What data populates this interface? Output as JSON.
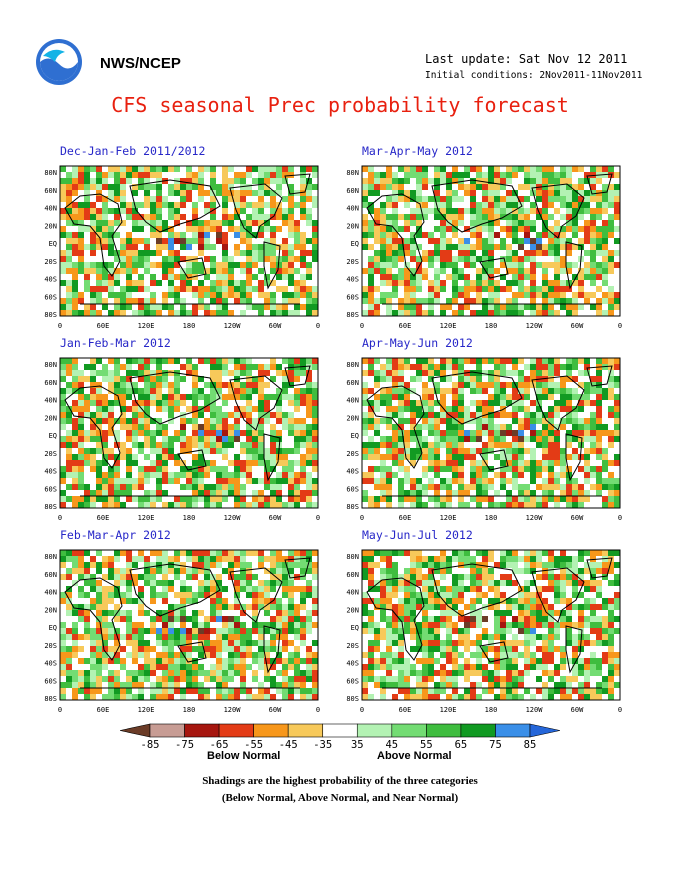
{
  "header": {
    "agency": "NWS/NCEP",
    "last_update": "Last update: Sat Nov 12 2011",
    "initial_conditions": "Initial conditions: 2Nov2011-11Nov2011",
    "title": "CFS seasonal Prec probability forecast",
    "title_color": "#e8200f",
    "panel_title_color": "#2727c8"
  },
  "panels": [
    {
      "title": "Dec-Jan-Feb 2011/2012"
    },
    {
      "title": "Mar-Apr-May 2012"
    },
    {
      "title": "Jan-Feb-Mar 2012"
    },
    {
      "title": "Apr-May-Jun 2012"
    },
    {
      "title": "Feb-Mar-Apr 2012"
    },
    {
      "title": "May-Jun-Jul 2012"
    }
  ],
  "map_axes": {
    "lat_labels": [
      "80N",
      "60N",
      "40N",
      "20N",
      "EQ",
      "20S",
      "40S",
      "60S",
      "80S"
    ],
    "lon_labels": [
      "0",
      "60E",
      "120E",
      "180",
      "120W",
      "60W",
      "0"
    ]
  },
  "colorbar": {
    "labels": [
      "-85",
      "-75",
      "-65",
      "-55",
      "-45",
      "-35",
      "35",
      "45",
      "55",
      "65",
      "75",
      "85"
    ],
    "colors": [
      "#6b3c27",
      "#c79c94",
      "#a6160f",
      "#e33b16",
      "#f7971b",
      "#f7c95a",
      "#ffffff",
      "#b3f2b3",
      "#73dc73",
      "#3fbd3f",
      "#119a22",
      "#3a8fe8",
      "#2566d9"
    ],
    "below_label": "Below Normal",
    "above_label": "Above Normal"
  },
  "footnote": {
    "line1": "Shadings are the highest probability of the three categories",
    "line2": "(Below Normal, Above Normal, and Near Normal)"
  }
}
